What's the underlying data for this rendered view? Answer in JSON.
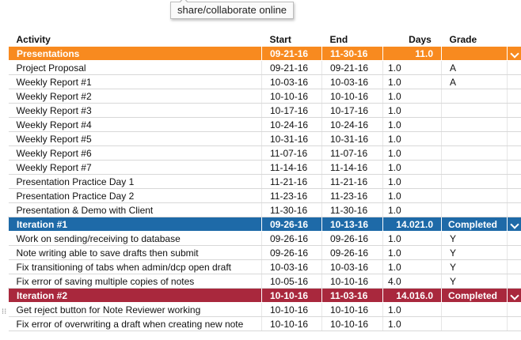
{
  "tooltip": "share/collaborate online",
  "columns": {
    "activity": "Activity",
    "start": "Start",
    "end": "End",
    "days": "Days",
    "grade": "Grade"
  },
  "colors": {
    "presentations": "#f88a1f",
    "iteration1": "#1e6aa8",
    "iteration2": "#a9283d"
  },
  "groups": [
    {
      "name": "Presentations",
      "start": "09-21-16",
      "end": "11-30-16",
      "days": "11.0",
      "status": "",
      "color": "#f88a1f",
      "rows": [
        {
          "activity": "Project Proposal",
          "start": "09-21-16",
          "end": "09-21-16",
          "days": "1.0",
          "grade": "A"
        },
        {
          "activity": "Weekly Report #1",
          "start": "10-03-16",
          "end": "10-03-16",
          "days": "1.0",
          "grade": "A"
        },
        {
          "activity": "Weekly Report #2",
          "start": "10-10-16",
          "end": "10-10-16",
          "days": "1.0",
          "grade": ""
        },
        {
          "activity": "Weekly Report #3",
          "start": "10-17-16",
          "end": "10-17-16",
          "days": "1.0",
          "grade": ""
        },
        {
          "activity": "Weekly Report #4",
          "start": "10-24-16",
          "end": "10-24-16",
          "days": "1.0",
          "grade": ""
        },
        {
          "activity": "Weekly Report #5",
          "start": "10-31-16",
          "end": "10-31-16",
          "days": "1.0",
          "grade": ""
        },
        {
          "activity": "Weekly Report #6",
          "start": "11-07-16",
          "end": "11-07-16",
          "days": "1.0",
          "grade": ""
        },
        {
          "activity": "Weekly Report #7",
          "start": "11-14-16",
          "end": "11-14-16",
          "days": "1.0",
          "grade": ""
        },
        {
          "activity": "Presentation Practice Day 1",
          "start": "11-21-16",
          "end": "11-21-16",
          "days": "1.0",
          "grade": ""
        },
        {
          "activity": "Presentation Practice Day 2",
          "start": "11-23-16",
          "end": "11-23-16",
          "days": "1.0",
          "grade": ""
        },
        {
          "activity": "Presentation & Demo with Client",
          "start": "11-30-16",
          "end": "11-30-16",
          "days": "1.0",
          "grade": ""
        }
      ]
    },
    {
      "name": "Iteration #1",
      "start": "09-26-16",
      "end": "10-13-16",
      "days": "14.021.0",
      "status": "Completed",
      "color": "#1e6aa8",
      "rows": [
        {
          "activity": "Work on sending/receiving to database",
          "start": "09-26-16",
          "end": "09-26-16",
          "days": "1.0",
          "grade": "Y"
        },
        {
          "activity": "Note writing able to save drafts then submit",
          "start": "09-26-16",
          "end": "09-26-16",
          "days": "1.0",
          "grade": "Y"
        },
        {
          "activity": "Fix transitioning of tabs when admin/dcp open draft",
          "start": "10-03-16",
          "end": "10-03-16",
          "days": "1.0",
          "grade": "Y"
        },
        {
          "activity": "Fix error of saving multiple copies of notes",
          "start": "10-05-16",
          "end": "10-10-16",
          "days": "4.0",
          "grade": "Y"
        }
      ]
    },
    {
      "name": "Iteration #2",
      "start": "10-10-16",
      "end": "11-03-16",
      "days": "14.016.0",
      "status": "Completed",
      "color": "#a9283d",
      "rows": [
        {
          "activity": "Get reject button for Note Reviewer working",
          "start": "10-10-16",
          "end": "10-10-16",
          "days": "1.0",
          "grade": ""
        },
        {
          "activity": "Fix error of overwriting a draft when creating new note",
          "start": "10-10-16",
          "end": "10-10-16",
          "days": "1.0",
          "grade": ""
        }
      ]
    }
  ]
}
